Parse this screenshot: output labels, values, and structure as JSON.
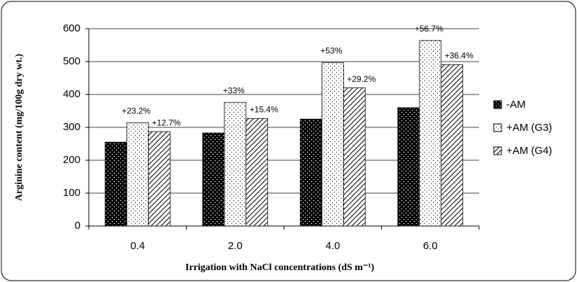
{
  "chart_data": {
    "type": "bar",
    "y_label": "Arginine content (mg/100g dry wt.)",
    "x_label": "Irrigation with NaCl concentrations (dS m⁻¹)",
    "categories": [
      "0.4",
      "2.0",
      "4.0",
      "6.0"
    ],
    "series": [
      {
        "name": "-AM",
        "values": [
          255,
          283,
          325,
          360
        ]
      },
      {
        "name": "+AM (G3)",
        "values": [
          314,
          376,
          497,
          564
        ],
        "annotations": [
          "+23.2%",
          "+33%",
          "+53%",
          "+56.7%"
        ]
      },
      {
        "name": "+AM (G4)",
        "values": [
          287,
          327,
          420,
          491
        ],
        "annotations": [
          "+12.7%",
          "+15.4%",
          "+29.2%",
          "+36.4%"
        ]
      }
    ],
    "ylim": [
      0,
      600
    ],
    "yticks": [
      0,
      100,
      200,
      300,
      400,
      500,
      600
    ],
    "grid": true,
    "legend": "right"
  }
}
